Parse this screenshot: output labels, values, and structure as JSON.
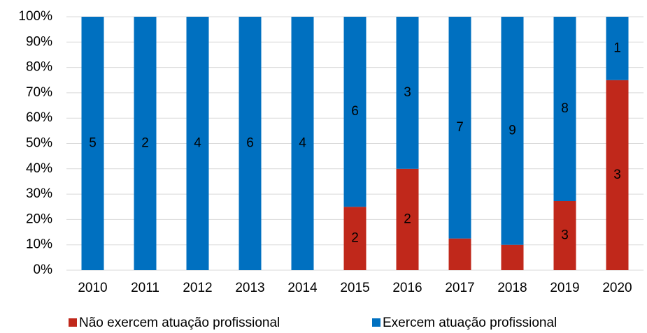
{
  "chart_data": {
    "type": "bar",
    "stack": "percent",
    "categories": [
      "2010",
      "2011",
      "2012",
      "2013",
      "2014",
      "2015",
      "2016",
      "2017",
      "2018",
      "2019",
      "2020"
    ],
    "series": [
      {
        "name": "Não exercem atuação profissional",
        "color": "#c0281b",
        "values": [
          0,
          0,
          0,
          0,
          0,
          2,
          2,
          1,
          1,
          3,
          3
        ],
        "value_labels": [
          null,
          null,
          null,
          null,
          null,
          "2",
          "2",
          null,
          null,
          "3",
          "3"
        ]
      },
      {
        "name": "Exercem atuação profissional",
        "color": "#0070c0",
        "values": [
          5,
          2,
          4,
          6,
          4,
          6,
          3,
          7,
          9,
          8,
          1
        ],
        "value_labels": [
          "5",
          "2",
          "4",
          "6",
          "4",
          "6",
          "3",
          "7",
          "9",
          "8",
          "1"
        ]
      }
    ],
    "ylim": [
      0,
      100
    ],
    "yticks": [
      {
        "value": 0,
        "label": "0%"
      },
      {
        "value": 10,
        "label": "10%"
      },
      {
        "value": 20,
        "label": "20%"
      },
      {
        "value": 30,
        "label": "30%"
      },
      {
        "value": 40,
        "label": "40%"
      },
      {
        "value": 50,
        "label": "50%"
      },
      {
        "value": 60,
        "label": "60%"
      },
      {
        "value": 70,
        "label": "70%"
      },
      {
        "value": 80,
        "label": "80%"
      },
      {
        "value": 90,
        "label": "90%"
      },
      {
        "value": 100,
        "label": "100%"
      }
    ],
    "grid": true,
    "legend": "bottom"
  }
}
